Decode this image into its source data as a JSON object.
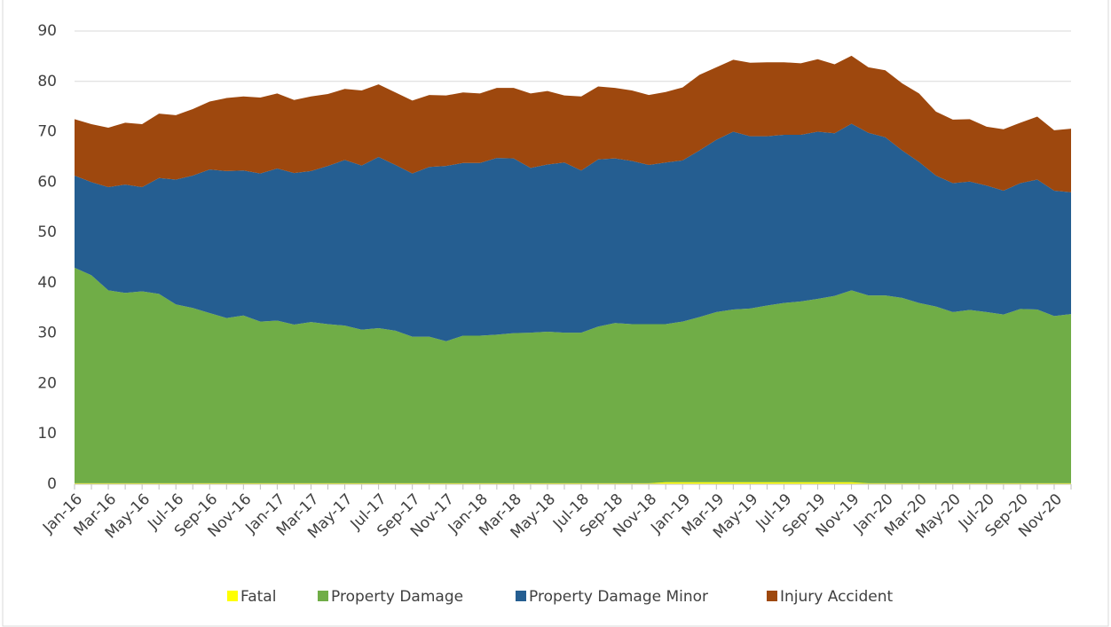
{
  "chart_data": {
    "type": "stacked_area",
    "categories": [
      "Jan-16",
      null,
      "Mar-16",
      null,
      "May-16",
      null,
      "Jul-16",
      null,
      "Sep-16",
      null,
      "Nov-16",
      null,
      "Jan-17",
      null,
      "Mar-17",
      null,
      "May-17",
      null,
      "Jul-17",
      null,
      "Sep-17",
      null,
      "Nov-17",
      null,
      "Jan-18",
      null,
      "Mar-18",
      null,
      "May-18",
      null,
      "Jul-18",
      null,
      "Sep-18",
      null,
      "Nov-18",
      null,
      "Jan-19",
      null,
      "Mar-19",
      null,
      "May-19",
      null,
      "Jul-19",
      null,
      "Sep-19",
      null,
      "Nov-19",
      null,
      "Jan-20",
      null,
      "Mar-20",
      null,
      "May-20",
      null,
      "Jul-20",
      null,
      "Sep-20",
      null,
      "Nov-20",
      null
    ],
    "series": [
      {
        "name": "Fatal",
        "color": "#ffff00",
        "values": [
          0.2,
          0.2,
          0.2,
          0.2,
          0.2,
          0.2,
          0.2,
          0.2,
          0.2,
          0.2,
          0.2,
          0.2,
          0.2,
          0.2,
          0.2,
          0.2,
          0.2,
          0.2,
          0.2,
          0.2,
          0.2,
          0.2,
          0.2,
          0.2,
          0.2,
          0.2,
          0.2,
          0.2,
          0.2,
          0.2,
          0.2,
          0.2,
          0.2,
          0.2,
          0.2,
          0.4,
          0.4,
          0.4,
          0.4,
          0.4,
          0.4,
          0.4,
          0.4,
          0.4,
          0.4,
          0.4,
          0.4,
          0.2,
          0.2,
          0.2,
          0.2,
          0.2,
          0.2,
          0.2,
          0.2,
          0.2,
          0.2,
          0.2,
          0.2,
          0.2
        ]
      },
      {
        "name": "Property Damage",
        "color": "#70ad47",
        "values": [
          42.8,
          41.3,
          38.3,
          37.8,
          38.1,
          37.6,
          35.5,
          34.8,
          33.8,
          32.8,
          33.3,
          32.1,
          32.3,
          31.5,
          32.0,
          31.6,
          31.3,
          30.5,
          30.8,
          30.3,
          29.1,
          29.1,
          28.2,
          29.3,
          29.3,
          29.5,
          29.8,
          29.9,
          30.1,
          29.9,
          29.9,
          31.1,
          31.8,
          31.6,
          31.6,
          31.4,
          31.9,
          32.8,
          33.8,
          34.3,
          34.5,
          35.1,
          35.6,
          35.9,
          36.4,
          37.0,
          38.1,
          37.3,
          37.3,
          36.8,
          35.8,
          35.1,
          34.0,
          34.4,
          34.0,
          33.5,
          34.6,
          34.5,
          33.2,
          33.6
        ]
      },
      {
        "name": "Property Damage Minor",
        "color": "#255e91",
        "values": [
          18.3,
          18.5,
          20.5,
          21.5,
          20.7,
          23.0,
          24.8,
          26.3,
          28.5,
          29.2,
          28.8,
          29.4,
          30.2,
          30.1,
          30.0,
          31.4,
          32.9,
          32.6,
          34.0,
          32.9,
          32.4,
          33.7,
          34.8,
          34.3,
          34.3,
          35.1,
          34.7,
          32.7,
          33.2,
          33.8,
          32.2,
          33.2,
          32.7,
          32.4,
          31.6,
          32.1,
          32.0,
          33.1,
          34.2,
          35.3,
          34.2,
          33.6,
          33.4,
          33.1,
          33.2,
          32.3,
          33.1,
          32.3,
          31.4,
          29.3,
          28.0,
          26.0,
          25.6,
          25.5,
          25.1,
          24.6,
          25.0,
          25.8,
          24.9,
          24.2
        ]
      },
      {
        "name": "Injury Accident",
        "color": "#9e480e",
        "values": [
          11.2,
          11.5,
          11.8,
          12.3,
          12.5,
          12.8,
          12.8,
          13.2,
          13.5,
          14.5,
          14.7,
          15.1,
          14.9,
          14.5,
          14.8,
          14.3,
          14.1,
          14.9,
          14.4,
          14.4,
          14.5,
          14.3,
          14.0,
          14.0,
          13.8,
          13.9,
          14.0,
          14.8,
          14.6,
          13.3,
          14.7,
          14.5,
          14.0,
          14.0,
          13.9,
          14.0,
          14.5,
          15.0,
          14.4,
          14.3,
          14.6,
          14.7,
          14.4,
          14.2,
          14.4,
          13.7,
          13.5,
          13.0,
          13.3,
          13.3,
          13.6,
          12.7,
          12.6,
          12.4,
          11.7,
          12.2,
          12.0,
          12.5,
          12.0,
          12.6
        ]
      }
    ],
    "ylim": [
      0,
      90
    ],
    "yticks": [
      0,
      10,
      20,
      30,
      40,
      50,
      60,
      70,
      80,
      90
    ],
    "grid": true,
    "legend": "bottom"
  }
}
